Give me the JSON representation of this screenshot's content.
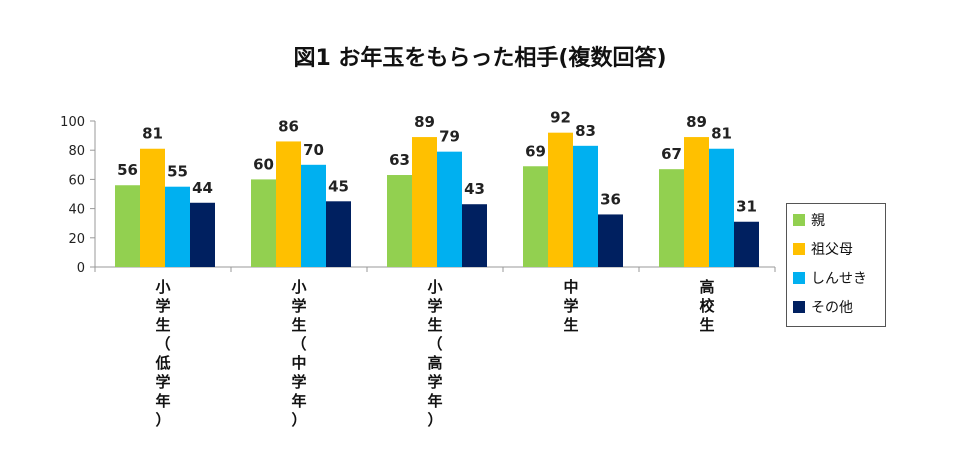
{
  "chart_data": {
    "type": "bar",
    "title": "図1 お年玉をもらった相手(複数回答)",
    "categories": [
      "小学生（低学年）",
      "小学生（中学年）",
      "小学生（高学年）",
      "中学生",
      "高校生"
    ],
    "series": [
      {
        "name": "親",
        "color": "#92D050",
        "values": [
          56,
          60,
          63,
          69,
          67
        ]
      },
      {
        "name": "祖父母",
        "color": "#FFC000",
        "values": [
          81,
          86,
          89,
          92,
          89
        ]
      },
      {
        "name": "しんせき",
        "color": "#00B0F0",
        "values": [
          55,
          70,
          79,
          83,
          81
        ]
      },
      {
        "name": "その他",
        "color": "#002060",
        "values": [
          44,
          45,
          43,
          36,
          31
        ]
      }
    ],
    "y_ticks": [
      "0",
      "20",
      "40",
      "60",
      "80",
      "100"
    ],
    "ylim": [
      0,
      100
    ],
    "xlabel": "",
    "ylabel": "",
    "grid": false,
    "legend_position": "right"
  }
}
